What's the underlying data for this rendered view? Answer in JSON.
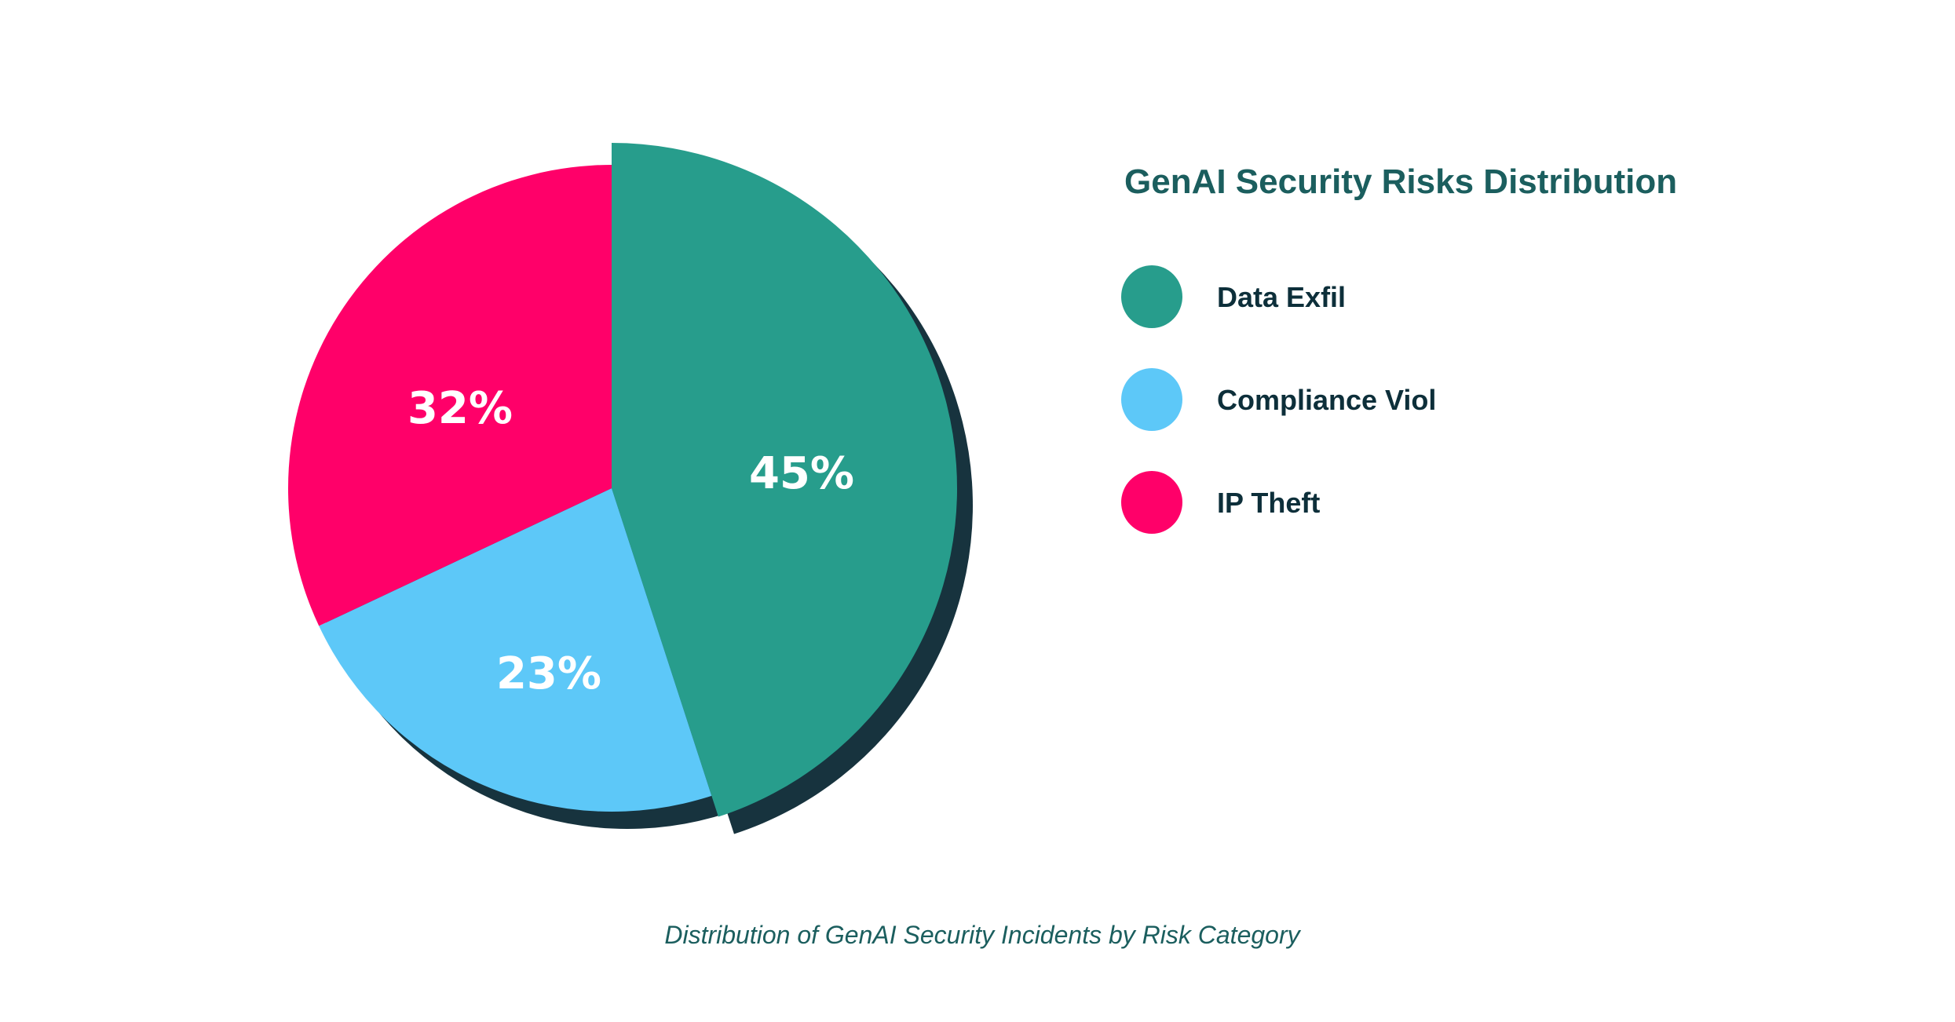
{
  "chart_data": {
    "type": "pie",
    "title": "GenAI Security Risks Distribution",
    "caption": "Distribution of GenAI Security Incidents by Risk Category",
    "legend_position": "right",
    "categories": [
      "Data Exfil",
      "Compliance Viol",
      "IP Theft"
    ],
    "values": [
      45,
      23,
      32
    ],
    "labels": [
      "45%",
      "23%",
      "32%"
    ],
    "colors": [
      "#279d8c",
      "#5dc8f8",
      "#ff0069"
    ],
    "exploded": [
      "Data Exfil"
    ],
    "shadow_color": "#17333e"
  }
}
